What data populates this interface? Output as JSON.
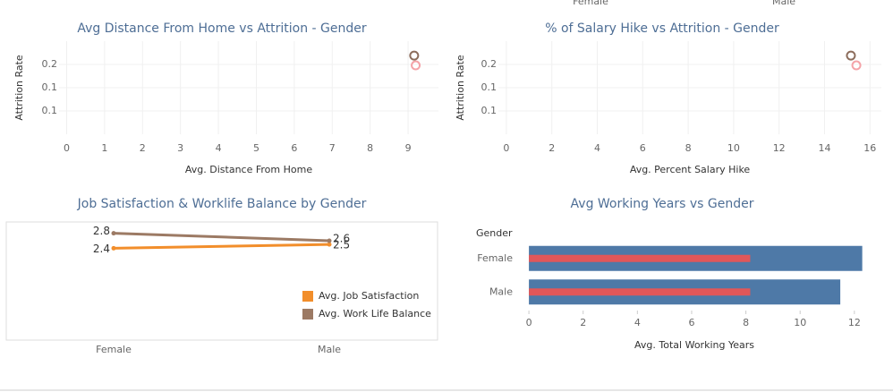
{
  "clipped_legend": [
    "Female",
    "Male"
  ],
  "chart_data": [
    {
      "type": "scatter",
      "title": "Avg Distance From Home vs Attrition - Gender",
      "x_label": "Avg. Distance From Home",
      "y_label": "Attrition Rate",
      "series": [
        {
          "name": "Female",
          "color": "#f4a3a8",
          "x": [
            9.2
          ],
          "values": [
            0.198
          ]
        },
        {
          "name": "Male",
          "color": "#8c6d5c",
          "x": [
            9.16
          ],
          "values": [
            0.219
          ]
        }
      ],
      "xlim": [
        -0.2,
        9.8
      ],
      "xticks": [
        0,
        1,
        2,
        3,
        4,
        5,
        6,
        7,
        8,
        9
      ],
      "ylim": [
        0.05,
        0.25
      ],
      "yticks": [
        0.2,
        {
          "value": 0.15,
          "label": "0.1"
        },
        0.1
      ],
      "grid": true
    },
    {
      "type": "scatter",
      "title": "% of Salary Hike vs Attrition - Gender",
      "x_label": "Avg. Percent Salary Hike",
      "y_label": "Attrition Rate",
      "series": [
        {
          "name": "Female",
          "color": "#f4a3a8",
          "x": [
            15.4
          ],
          "values": [
            0.198
          ]
        },
        {
          "name": "Male",
          "color": "#8c6d5c",
          "x": [
            15.16
          ],
          "values": [
            0.219
          ]
        }
      ],
      "xlim": [
        -0.35,
        16.5
      ],
      "xticks": [
        0,
        2,
        4,
        6,
        8,
        10,
        12,
        14,
        16
      ],
      "ylim": [
        0.05,
        0.25
      ],
      "yticks": [
        0.2,
        {
          "value": 0.15,
          "label": "0.1"
        },
        0.1
      ],
      "grid": true
    },
    {
      "type": "line",
      "title": "Job Satisfaction & Worklife Balance by Gender",
      "categories": [
        "Female",
        "Male"
      ],
      "series": [
        {
          "name": "Avg. Job Satisfaction",
          "color": "#f28e2b",
          "values": [
            2.4,
            2.5
          ]
        },
        {
          "name": "Avg. Work Life Balance",
          "color": "#9c7a64",
          "values": [
            2.8,
            2.6
          ]
        }
      ],
      "ylim": [
        0,
        3.1
      ],
      "legend": "bottom-right"
    },
    {
      "type": "hbar",
      "title": "Avg Working Years vs Gender",
      "category_header": "Gender",
      "x_label": "Avg. Total Working Years",
      "categories": [
        "Female",
        "Male"
      ],
      "series": [
        {
          "color": "#4e79a7",
          "values": [
            12.29,
            11.48
          ]
        },
        {
          "color": "#e15759",
          "values": [
            8.16,
            8.16
          ]
        }
      ],
      "xlim": [
        -0.3,
        12.5
      ],
      "xticks": [
        0,
        2,
        4,
        6,
        8,
        10,
        12
      ]
    }
  ]
}
